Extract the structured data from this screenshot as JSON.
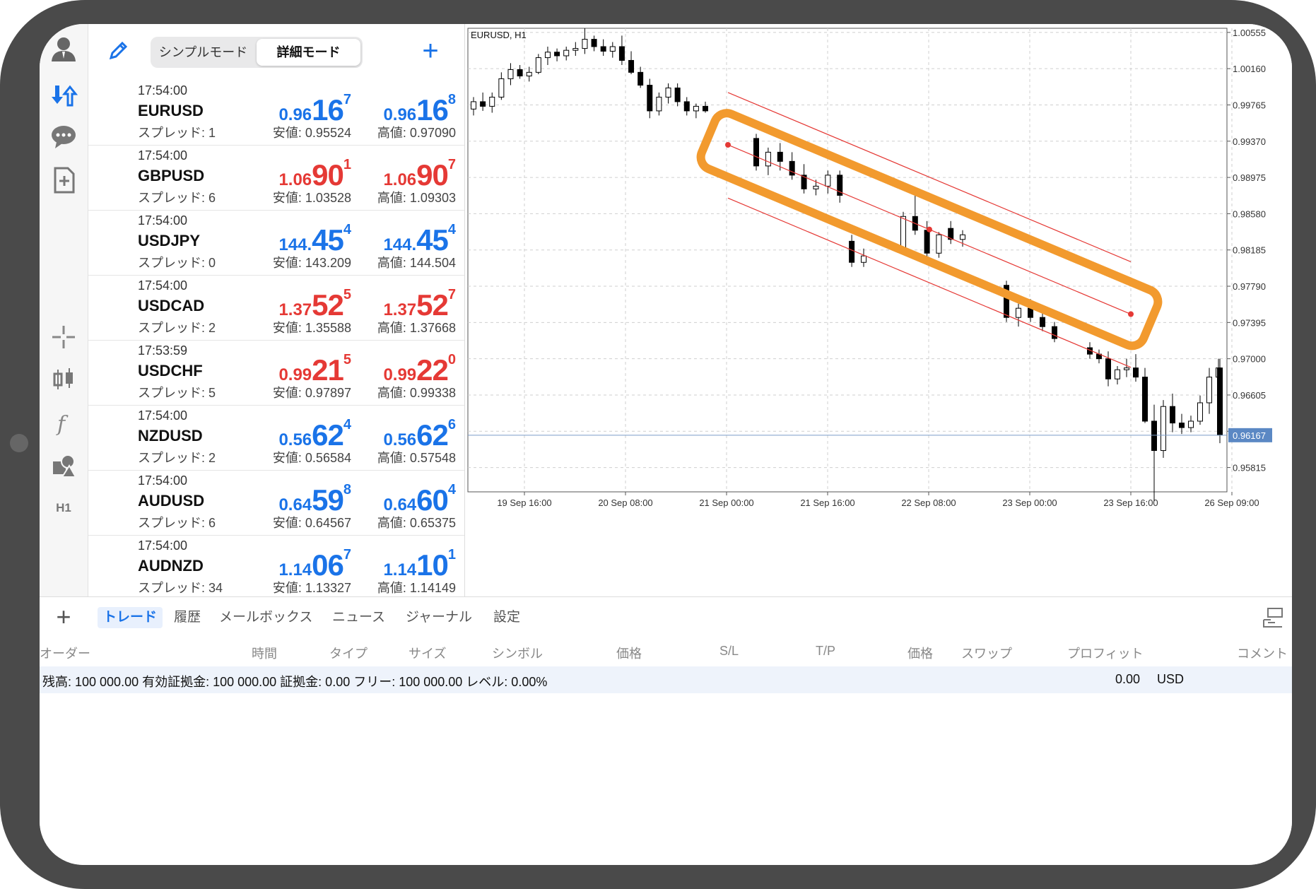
{
  "header": {
    "mode_simple": "シンプルモード",
    "mode_detail": "詳細モード"
  },
  "toolbar": {
    "timeframe": "H1"
  },
  "quotes": [
    {
      "time": "17:54:00",
      "symbol": "EURUSD",
      "spread": "スプレッド: 1",
      "bid_prefix": "0.96",
      "bid_big": "16",
      "bid_sup": "7",
      "ask_prefix": "0.96",
      "ask_big": "16",
      "ask_sup": "8",
      "low": "安値: 0.95524",
      "high": "高値: 0.97090",
      "color": "blue"
    },
    {
      "time": "17:54:00",
      "symbol": "GBPUSD",
      "spread": "スプレッド: 6",
      "bid_prefix": "1.06",
      "bid_big": "90",
      "bid_sup": "1",
      "ask_prefix": "1.06",
      "ask_big": "90",
      "ask_sup": "7",
      "low": "安値: 1.03528",
      "high": "高値: 1.09303",
      "color": "red"
    },
    {
      "time": "17:54:00",
      "symbol": "USDJPY",
      "spread": "スプレッド: 0",
      "bid_prefix": "144.",
      "bid_big": "45",
      "bid_sup": "4",
      "ask_prefix": "144.",
      "ask_big": "45",
      "ask_sup": "4",
      "low": "安値: 143.209",
      "high": "高値: 144.504",
      "color": "blue"
    },
    {
      "time": "17:54:00",
      "symbol": "USDCAD",
      "spread": "スプレッド: 2",
      "bid_prefix": "1.37",
      "bid_big": "52",
      "bid_sup": "5",
      "ask_prefix": "1.37",
      "ask_big": "52",
      "ask_sup": "7",
      "low": "安値: 1.35588",
      "high": "高値: 1.37668",
      "color": "red"
    },
    {
      "time": "17:53:59",
      "symbol": "USDCHF",
      "spread": "スプレッド: 5",
      "bid_prefix": "0.99",
      "bid_big": "21",
      "bid_sup": "5",
      "ask_prefix": "0.99",
      "ask_big": "22",
      "ask_sup": "0",
      "low": "安値: 0.97897",
      "high": "高値: 0.99338",
      "color": "red"
    },
    {
      "time": "17:54:00",
      "symbol": "NZDUSD",
      "spread": "スプレッド: 2",
      "bid_prefix": "0.56",
      "bid_big": "62",
      "bid_sup": "4",
      "ask_prefix": "0.56",
      "ask_big": "62",
      "ask_sup": "6",
      "low": "安値: 0.56584",
      "high": "高値: 0.57548",
      "color": "blue"
    },
    {
      "time": "17:54:00",
      "symbol": "AUDUSD",
      "spread": "スプレッド: 6",
      "bid_prefix": "0.64",
      "bid_big": "59",
      "bid_sup": "8",
      "ask_prefix": "0.64",
      "ask_big": "60",
      "ask_sup": "4",
      "low": "安値: 0.64567",
      "high": "高値: 0.65375",
      "color": "blue"
    },
    {
      "time": "17:54:00",
      "symbol": "AUDNZD",
      "spread": "スプレッド: 34",
      "bid_prefix": "1.14",
      "bid_big": "06",
      "bid_sup": "7",
      "ask_prefix": "1.14",
      "ask_big": "10",
      "ask_sup": "1",
      "low": "安値: 1.13327",
      "high": "高値: 1.14149",
      "color": "blue"
    }
  ],
  "chart": {
    "title": "EURUSD, H1",
    "current_price": "0.96167",
    "price_labels": [
      "1.00555",
      "1.00160",
      "0.99765",
      "0.99370",
      "0.98975",
      "0.98580",
      "0.98185",
      "0.97790",
      "0.97395",
      "0.97000",
      "0.96605",
      "0.96210",
      "0.95815"
    ],
    "time_labels": [
      "19 Sep 16:00",
      "20 Sep 08:00",
      "21 Sep 00:00",
      "21 Sep 16:00",
      "22 Sep 08:00",
      "23 Sep 00:00",
      "23 Sep 16:00",
      "26 Sep 09:00"
    ],
    "colors": {
      "channel": "#e53935",
      "highlight": "#f29a2e",
      "grid": "#cfcfcf",
      "price_line": "#7a9cc6",
      "price_badge": "#5b88c4"
    }
  },
  "chart_data": {
    "type": "candlestick",
    "title": "EURUSD, H1",
    "ylim": [
      0.9555,
      1.006
    ],
    "y_ticks": [
      1.00555,
      1.0016,
      0.99765,
      0.9937,
      0.98975,
      0.9858,
      0.98185,
      0.9779,
      0.97395,
      0.97,
      0.96605,
      0.9621,
      0.95815
    ],
    "x_ticks": [
      "19 Sep 16:00",
      "20 Sep 08:00",
      "21 Sep 00:00",
      "21 Sep 16:00",
      "22 Sep 08:00",
      "23 Sep 00:00",
      "23 Sep 16:00",
      "26 Sep 09:00"
    ],
    "candles": [
      [
        0.9972,
        0.9985,
        0.9965,
        0.998
      ],
      [
        0.998,
        0.999,
        0.997,
        0.9975
      ],
      [
        0.9975,
        0.999,
        0.9968,
        0.9985
      ],
      [
        0.9985,
        1.0012,
        0.9982,
        1.0005
      ],
      [
        1.0005,
        1.0022,
        0.9998,
        1.0015
      ],
      [
        1.0015,
        1.002,
        1.0005,
        1.0008
      ],
      [
        1.0008,
        1.0018,
        1.0002,
        1.0012
      ],
      [
        1.0012,
        1.0032,
        1.001,
        1.0028
      ],
      [
        1.0028,
        1.004,
        1.002,
        1.0034
      ],
      [
        1.0034,
        1.0038,
        1.0024,
        1.003
      ],
      [
        1.003,
        1.004,
        1.0025,
        1.0036
      ],
      [
        1.0036,
        1.0045,
        1.003,
        1.0038
      ],
      [
        1.0038,
        1.006,
        1.0032,
        1.0048
      ],
      [
        1.0048,
        1.0052,
        1.0035,
        1.004
      ],
      [
        1.004,
        1.0048,
        1.003,
        1.0035
      ],
      [
        1.0035,
        1.0045,
        1.0028,
        1.004
      ],
      [
        1.004,
        1.0052,
        1.002,
        1.0025
      ],
      [
        1.0025,
        1.0035,
        1.001,
        1.0012
      ],
      [
        1.0012,
        1.0018,
        0.9995,
        0.9998
      ],
      [
        0.9998,
        1.0005,
        0.9962,
        0.997
      ],
      [
        0.997,
        0.999,
        0.9965,
        0.9985
      ],
      [
        0.9985,
        1.0,
        0.9978,
        0.9995
      ],
      [
        0.9995,
        1.0,
        0.9975,
        0.998
      ],
      [
        0.998,
        0.9985,
        0.9965,
        0.997
      ],
      [
        0.997,
        0.9978,
        0.9962,
        0.9975
      ],
      [
        0.9975,
        0.998,
        0.9968,
        0.997
      ],
      [
        0.994,
        0.9945,
        0.9905,
        0.991
      ],
      [
        0.991,
        0.993,
        0.99,
        0.9925
      ],
      [
        0.9925,
        0.9935,
        0.9905,
        0.9915
      ],
      [
        0.9915,
        0.9925,
        0.9895,
        0.99
      ],
      [
        0.99,
        0.9912,
        0.988,
        0.9885
      ],
      [
        0.9885,
        0.9895,
        0.9878,
        0.9888
      ],
      [
        0.9888,
        0.9905,
        0.988,
        0.99
      ],
      [
        0.99,
        0.9905,
        0.987,
        0.9878
      ],
      [
        0.9828,
        0.9835,
        0.98,
        0.9805
      ],
      [
        0.9805,
        0.982,
        0.98,
        0.9812
      ],
      [
        0.982,
        0.986,
        0.9815,
        0.9855
      ],
      [
        0.9855,
        0.988,
        0.9835,
        0.984
      ],
      [
        0.984,
        0.985,
        0.981,
        0.9815
      ],
      [
        0.9815,
        0.9838,
        0.981,
        0.9835
      ],
      [
        0.9842,
        0.985,
        0.9825,
        0.983
      ],
      [
        0.983,
        0.984,
        0.9822,
        0.9835
      ],
      [
        0.978,
        0.9785,
        0.974,
        0.9745
      ],
      [
        0.9745,
        0.976,
        0.9735,
        0.9755
      ],
      [
        0.9755,
        0.9765,
        0.974,
        0.9745
      ],
      [
        0.9745,
        0.9752,
        0.973,
        0.9735
      ],
      [
        0.9735,
        0.974,
        0.9718,
        0.9722
      ],
      [
        0.9712,
        0.9718,
        0.97,
        0.9705
      ],
      [
        0.9705,
        0.971,
        0.9695,
        0.97
      ],
      [
        0.97,
        0.9708,
        0.967,
        0.9678
      ],
      [
        0.9678,
        0.9692,
        0.9672,
        0.9688
      ],
      [
        0.9688,
        0.97,
        0.968,
        0.969
      ],
      [
        0.969,
        0.9705,
        0.9675,
        0.968
      ],
      [
        0.968,
        0.969,
        0.963,
        0.9632
      ],
      [
        0.9632,
        0.965,
        0.9545,
        0.96
      ],
      [
        0.96,
        0.9655,
        0.9592,
        0.9648
      ],
      [
        0.9648,
        0.9662,
        0.962,
        0.963
      ],
      [
        0.963,
        0.964,
        0.9618,
        0.9625
      ],
      [
        0.9625,
        0.9638,
        0.962,
        0.9632
      ],
      [
        0.9632,
        0.966,
        0.9628,
        0.9652
      ],
      [
        0.9652,
        0.969,
        0.964,
        0.968
      ],
      [
        0.968,
        0.97,
        0.9665,
        0.969
      ],
      [
        0.969,
        0.97,
        0.964,
        0.9645
      ],
      [
        0.9645,
        0.9658,
        0.963,
        0.964
      ],
      [
        0.964,
        0.966,
        0.9628,
        0.965
      ],
      [
        0.965,
        0.9695,
        0.964,
        0.9688
      ],
      [
        0.9688,
        0.9698,
        0.9645,
        0.9655
      ],
      [
        0.9655,
        0.966,
        0.9608,
        0.9617
      ]
    ],
    "channel": {
      "start": [
        "20 Sep 13:00",
        0.9933
      ],
      "end": [
        "23 Sep 13:00",
        0.97486
      ],
      "upper_offset": 0.0057,
      "lower_offset": -0.0058
    }
  },
  "trade": {
    "tabs": [
      "トレード",
      "履歴",
      "メールボックス",
      "ニュース",
      "ジャーナル",
      "設定"
    ],
    "columns": [
      "オーダー",
      "時間",
      "タイプ",
      "サイズ",
      "シンボル",
      "価格",
      "S/L",
      "T/P",
      "価格",
      "スワップ",
      "プロフィット",
      "コメント"
    ],
    "balance_text": "残高: 100 000.00 有効証拠金: 100 000.00 証拠金: 0.00 フリー: 100 000.00 レベル: 0.00%",
    "profit_value": "0.00",
    "profit_currency": "USD"
  }
}
